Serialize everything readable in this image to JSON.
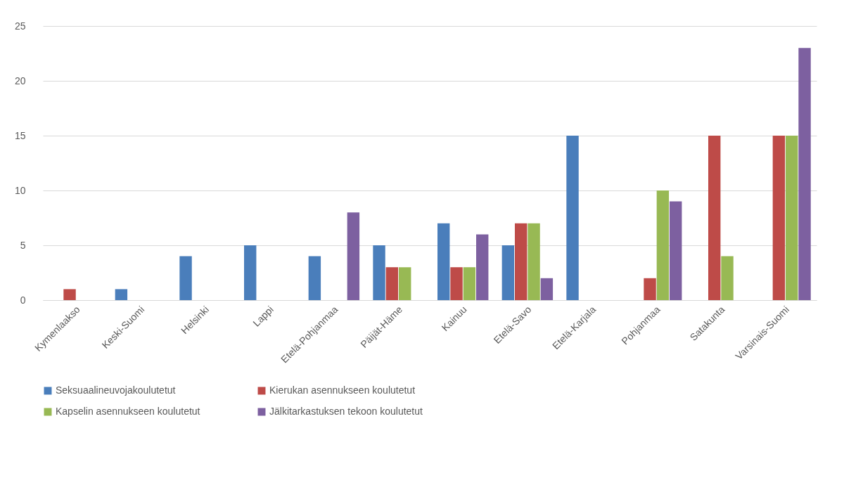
{
  "chart_data": {
    "type": "bar",
    "categories": [
      "Kymenlaakso",
      "Keski-Suomi",
      "Helsinki",
      "Lappi",
      "Etelä-Pohjanmaa",
      "Päijät-Häme",
      "Kainuu",
      "Etelä-Savo",
      "Etelä-Karjala",
      "Pohjanmaa",
      "Satakunta",
      "Varsinais-Suomi"
    ],
    "series": [
      {
        "name": "Seksuaalineuvojakoulutetut",
        "color": "#4a7ebb",
        "values": [
          null,
          1,
          4,
          5,
          4,
          5,
          7,
          5,
          15,
          null,
          null,
          null
        ]
      },
      {
        "name": "Kierukan asennukseen koulutetut",
        "color": "#be4b48",
        "values": [
          1,
          null,
          null,
          null,
          null,
          3,
          3,
          7,
          null,
          2,
          15,
          15
        ]
      },
      {
        "name": "Kapselin asennukseen koulutetut",
        "color": "#98b954",
        "values": [
          null,
          null,
          null,
          null,
          null,
          3,
          3,
          7,
          null,
          10,
          4,
          15
        ]
      },
      {
        "name": "Jälkitarkastuksen tekoon koulutetut",
        "color": "#7d60a0",
        "values": [
          null,
          null,
          null,
          null,
          8,
          null,
          6,
          2,
          null,
          9,
          null,
          23
        ]
      }
    ],
    "ylim": [
      0,
      25
    ],
    "yticks": [
      0,
      5,
      10,
      15,
      20,
      25
    ],
    "grid": "y",
    "legend": "bottom"
  }
}
